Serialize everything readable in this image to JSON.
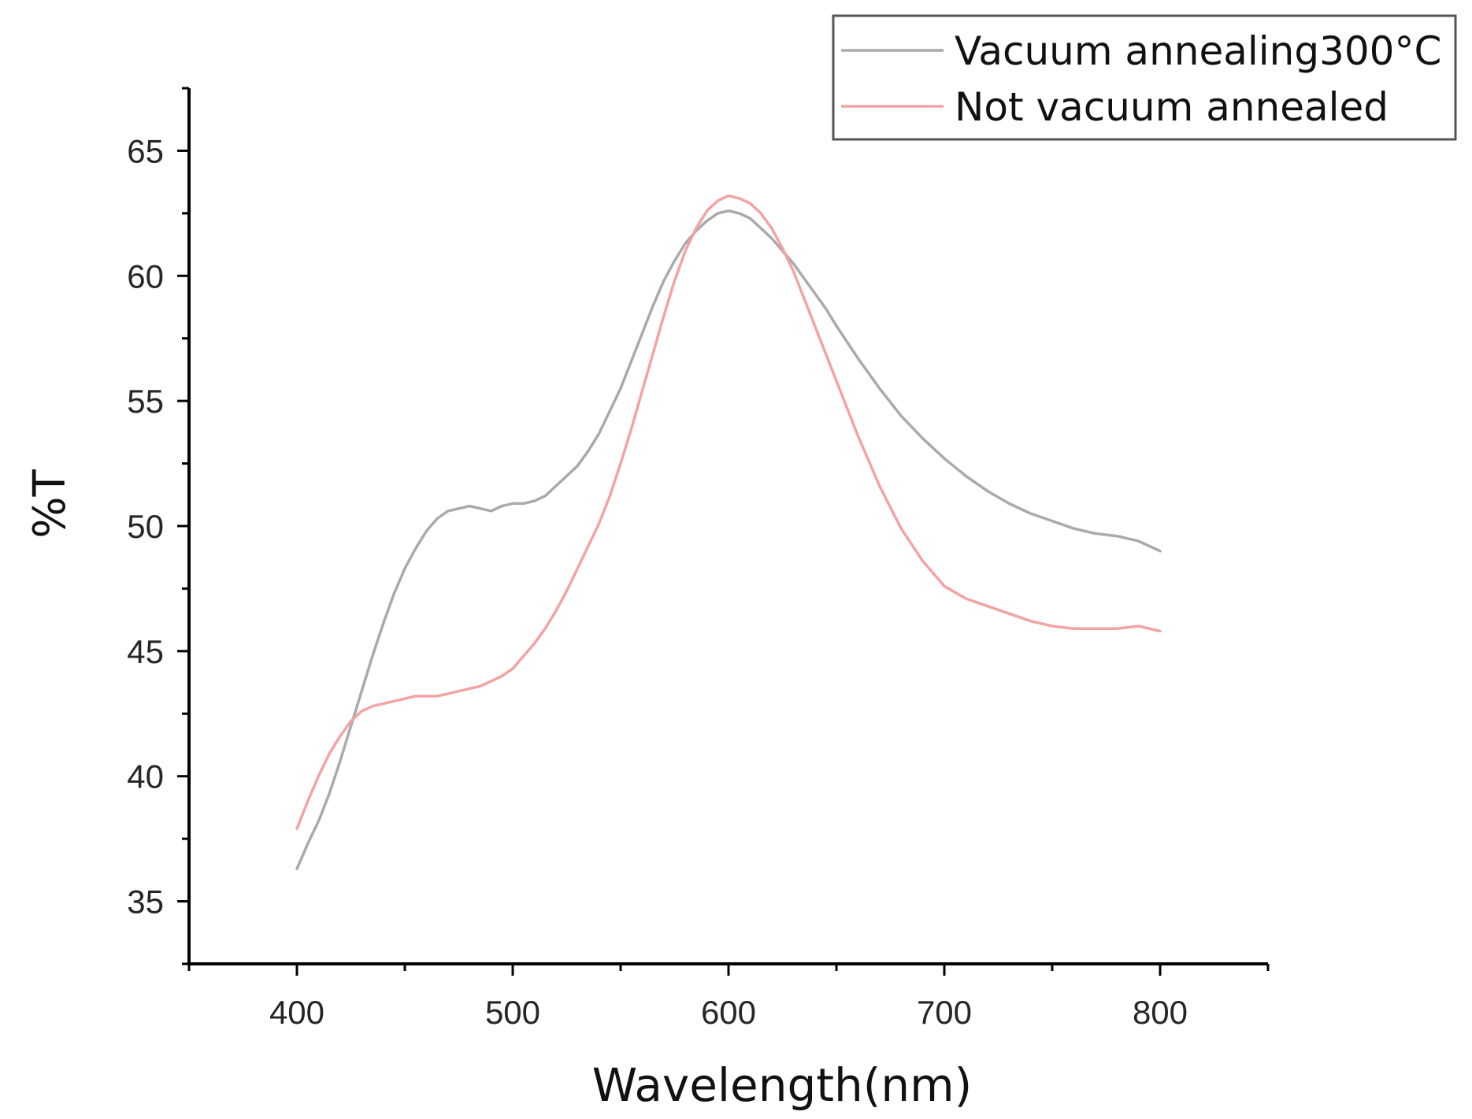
{
  "chart_data": {
    "type": "line",
    "title": "",
    "xlabel": "Wavelength(nm)",
    "ylabel": "%T",
    "xlim": [
      350,
      850
    ],
    "ylim": [
      32.5,
      67.5
    ],
    "xticks": [
      400,
      500,
      600,
      700,
      800
    ],
    "yticks": [
      35,
      40,
      45,
      50,
      55,
      60,
      65
    ],
    "grid": false,
    "legend_position": "top-right",
    "series": [
      {
        "name": "Vacuum annealing300°C",
        "color": "#aaaaaa",
        "x": [
          400,
          405,
          410,
          415,
          420,
          425,
          430,
          435,
          440,
          445,
          450,
          455,
          460,
          465,
          470,
          475,
          480,
          485,
          490,
          495,
          500,
          505,
          510,
          515,
          520,
          525,
          530,
          535,
          540,
          545,
          550,
          555,
          560,
          565,
          570,
          575,
          580,
          585,
          590,
          595,
          600,
          605,
          610,
          615,
          620,
          625,
          630,
          635,
          640,
          645,
          650,
          660,
          670,
          680,
          690,
          700,
          710,
          720,
          730,
          740,
          750,
          760,
          770,
          780,
          790,
          800
        ],
        "y": [
          36.3,
          37.3,
          38.2,
          39.3,
          40.6,
          42.0,
          43.4,
          44.8,
          46.1,
          47.3,
          48.3,
          49.1,
          49.8,
          50.3,
          50.6,
          50.7,
          50.8,
          50.7,
          50.6,
          50.8,
          50.9,
          50.9,
          51.0,
          51.2,
          51.6,
          52.0,
          52.4,
          53.0,
          53.7,
          54.6,
          55.5,
          56.6,
          57.7,
          58.8,
          59.8,
          60.6,
          61.3,
          61.8,
          62.2,
          62.5,
          62.6,
          62.5,
          62.3,
          61.9,
          61.5,
          61.0,
          60.5,
          59.9,
          59.3,
          58.7,
          58.0,
          56.7,
          55.5,
          54.4,
          53.5,
          52.7,
          52.0,
          51.4,
          50.9,
          50.5,
          50.2,
          49.9,
          49.7,
          49.6,
          49.4,
          49.0
        ]
      },
      {
        "name": "Not vacuum annealed",
        "color": "#f3a3a3",
        "x": [
          400,
          405,
          410,
          415,
          420,
          425,
          430,
          435,
          440,
          445,
          450,
          455,
          460,
          465,
          470,
          475,
          480,
          485,
          490,
          495,
          500,
          505,
          510,
          515,
          520,
          525,
          530,
          535,
          540,
          545,
          550,
          555,
          560,
          565,
          570,
          575,
          580,
          585,
          590,
          595,
          600,
          605,
          610,
          615,
          620,
          625,
          630,
          635,
          640,
          645,
          650,
          660,
          670,
          680,
          690,
          700,
          710,
          720,
          730,
          740,
          750,
          760,
          770,
          780,
          790,
          800
        ],
        "y": [
          37.9,
          39.0,
          40.0,
          40.9,
          41.6,
          42.2,
          42.6,
          42.8,
          42.9,
          43.0,
          43.1,
          43.2,
          43.2,
          43.2,
          43.3,
          43.4,
          43.5,
          43.6,
          43.8,
          44.0,
          44.3,
          44.8,
          45.3,
          45.9,
          46.6,
          47.4,
          48.3,
          49.2,
          50.1,
          51.2,
          52.5,
          53.9,
          55.4,
          56.9,
          58.4,
          59.8,
          61.0,
          61.9,
          62.6,
          63.0,
          63.2,
          63.1,
          62.9,
          62.5,
          61.9,
          61.1,
          60.2,
          59.1,
          58.0,
          56.9,
          55.8,
          53.6,
          51.6,
          49.9,
          48.6,
          47.6,
          47.1,
          46.8,
          46.5,
          46.2,
          46.0,
          45.9,
          45.9,
          45.9,
          46.0,
          45.8
        ]
      }
    ]
  }
}
